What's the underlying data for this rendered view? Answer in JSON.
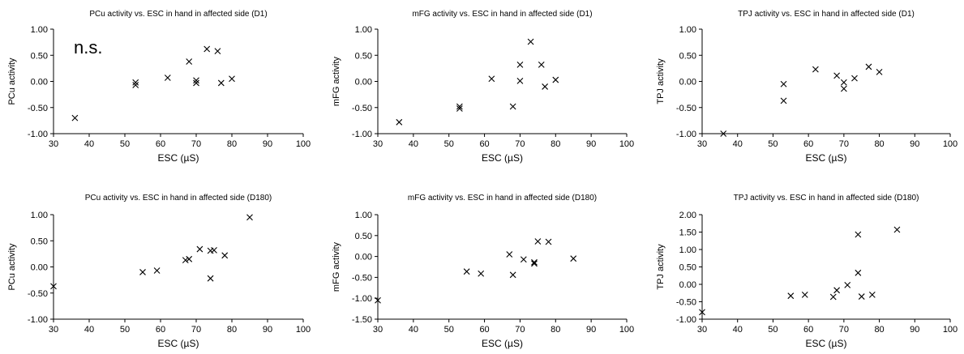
{
  "chart_data": [
    {
      "type": "scatter",
      "title": "PCu activity vs. ESC in hand in affected side (D1)",
      "xlabel": "ESC (µS)",
      "ylabel": "PCu activity",
      "xlim": [
        30,
        100
      ],
      "ylim": [
        -1,
        1
      ],
      "xticks": [
        "30",
        "40",
        "50",
        "60",
        "70",
        "80",
        "90",
        "100"
      ],
      "yticks": [
        "-1.00",
        "-0.50",
        "0.00",
        "0.50",
        "1.00"
      ],
      "annotation": "n.s.",
      "grid": false,
      "marker": "x",
      "x": [
        36,
        53,
        53,
        62,
        68,
        70,
        70,
        73,
        76,
        77,
        80
      ],
      "y": [
        -0.7,
        -0.02,
        -0.07,
        0.07,
        0.38,
        0.02,
        -0.03,
        0.62,
        0.58,
        -0.03,
        0.05
      ]
    },
    {
      "type": "scatter",
      "title": "mFG activity vs. ESC in hand in affected side (D1)",
      "xlabel": "ESC (µS)",
      "ylabel": "mFG activity",
      "xlim": [
        30,
        100
      ],
      "ylim": [
        -1,
        1
      ],
      "xticks": [
        "30",
        "40",
        "50",
        "60",
        "70",
        "80",
        "90",
        "100"
      ],
      "yticks": [
        "-1.00",
        "-0.50",
        "0.00",
        "0.50",
        "1.00"
      ],
      "grid": false,
      "marker": "x",
      "x": [
        36,
        53,
        53,
        62,
        68,
        70,
        70,
        73,
        76,
        77,
        80
      ],
      "y": [
        -0.78,
        -0.48,
        -0.52,
        0.05,
        -0.48,
        0.32,
        0.01,
        0.76,
        0.32,
        -0.1,
        0.03
      ]
    },
    {
      "type": "scatter",
      "title": "TPJ activity vs. ESC in hand in affected side (D1)",
      "xlabel": "ESC (µS)",
      "ylabel": "TPJ activity",
      "xlim": [
        30,
        100
      ],
      "ylim": [
        -1,
        1
      ],
      "xticks": [
        "30",
        "40",
        "50",
        "60",
        "70",
        "80",
        "90",
        "100"
      ],
      "yticks": [
        "-1.00",
        "-0.50",
        "0.00",
        "0.50",
        "1.00"
      ],
      "grid": false,
      "marker": "x",
      "x": [
        36,
        53,
        53,
        62,
        68,
        70,
        70,
        73,
        77,
        80
      ],
      "y": [
        -1.0,
        -0.05,
        -0.37,
        0.23,
        0.11,
        -0.02,
        -0.14,
        0.06,
        0.28,
        0.18
      ]
    },
    {
      "type": "scatter",
      "title": "PCu activity vs. ESC in hand in affected side (D180)",
      "xlabel": "ESC (µS)",
      "ylabel": "PCu activity",
      "xlim": [
        30,
        100
      ],
      "ylim": [
        -1,
        1
      ],
      "xticks": [
        "30",
        "40",
        "50",
        "60",
        "70",
        "80",
        "90",
        "100"
      ],
      "yticks": [
        "-1.00",
        "-0.50",
        "0.00",
        "0.50",
        "1.00"
      ],
      "grid": false,
      "marker": "x",
      "x": [
        30,
        55,
        59,
        67,
        68,
        71,
        74,
        74,
        75,
        78,
        85
      ],
      "y": [
        -0.37,
        -0.1,
        -0.07,
        0.13,
        0.15,
        0.34,
        0.31,
        -0.22,
        0.32,
        0.22,
        0.95
      ]
    },
    {
      "type": "scatter",
      "title": "mFG activity vs. ESC in hand in affected side (D180)",
      "xlabel": "ESC (µS)",
      "ylabel": "mFG activity",
      "xlim": [
        30,
        100
      ],
      "ylim": [
        -1.5,
        1
      ],
      "xticks": [
        "30",
        "40",
        "50",
        "60",
        "70",
        "80",
        "90",
        "100"
      ],
      "yticks": [
        "-1.50",
        "-1.00",
        "-0.50",
        "0.00",
        "0.50",
        "1.00"
      ],
      "grid": false,
      "marker": "x",
      "x": [
        30,
        55,
        59,
        67,
        68,
        71,
        74,
        74,
        75,
        78,
        85
      ],
      "y": [
        -1.05,
        -0.36,
        -0.41,
        0.05,
        -0.44,
        -0.07,
        -0.14,
        -0.17,
        0.36,
        0.35,
        -0.05
      ]
    },
    {
      "type": "scatter",
      "title": "TPJ activity vs. ESC in hand in affected side (D180)",
      "xlabel": "ESC (µS)",
      "ylabel": "TPJ activity",
      "xlim": [
        30,
        100
      ],
      "ylim": [
        -1,
        2
      ],
      "xticks": [
        "30",
        "40",
        "50",
        "60",
        "70",
        "80",
        "90",
        "100"
      ],
      "yticks": [
        "-1.00",
        "-0.50",
        "0.00",
        "0.50",
        "1.00",
        "1.50",
        "2.00"
      ],
      "grid": false,
      "marker": "x",
      "x": [
        30,
        55,
        59,
        67,
        68,
        71,
        74,
        74,
        75,
        78,
        85
      ],
      "y": [
        -0.8,
        -0.33,
        -0.3,
        -0.36,
        -0.17,
        -0.02,
        1.43,
        0.33,
        -0.35,
        -0.3,
        1.57
      ]
    }
  ]
}
